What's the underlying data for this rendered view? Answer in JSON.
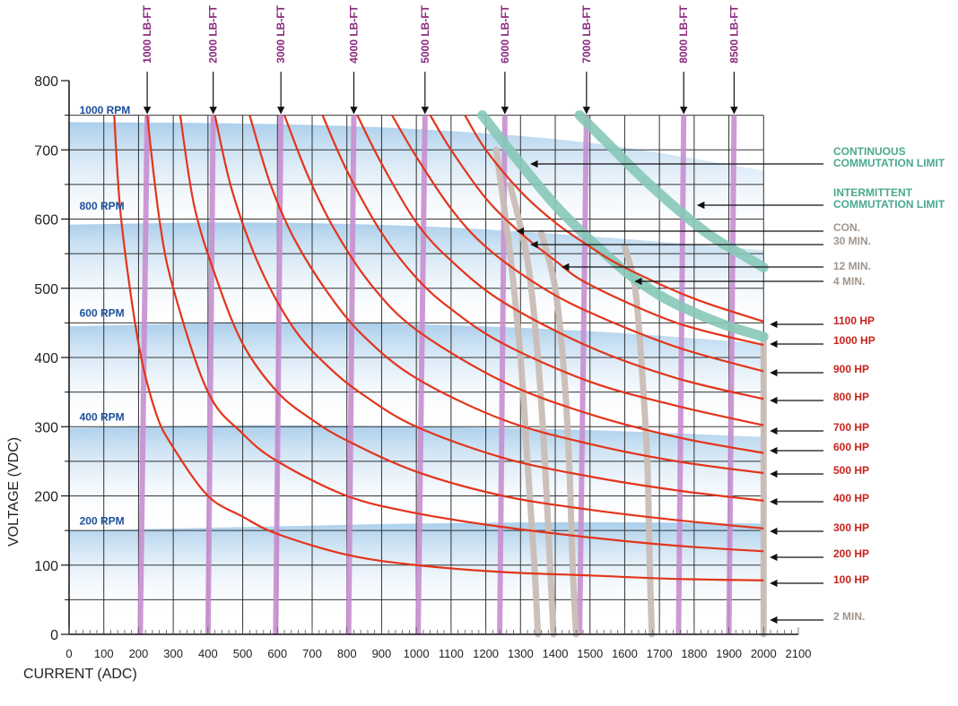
{
  "chart_data": {
    "type": "line",
    "xlabel": "CURRENT (ADC)",
    "ylabel": "VOLTAGE (VDC)",
    "xlim": [
      0,
      2100
    ],
    "ylim": [
      0,
      800
    ],
    "x_ticks": [
      "0",
      "100",
      "200",
      "300",
      "400",
      "500",
      "600",
      "700",
      "800",
      "900",
      "1000",
      "1100",
      "1200",
      "1300",
      "1400",
      "1500",
      "1600",
      "1700",
      "1800",
      "1900",
      "2000",
      "2100"
    ],
    "y_ticks": [
      "0",
      "100",
      "200",
      "300",
      "400",
      "500",
      "600",
      "700",
      "800"
    ],
    "grid": true,
    "colors": {
      "hp": "#e3341b",
      "torque": "#c88fd0",
      "rpm_band": "#a9cdea",
      "duty": "#c9bdb6",
      "commutation": "#86c8b8",
      "hp_label": "#c8231a",
      "duty_label": "#a0968e",
      "commutation_label": "#4aa88f",
      "torque_label": "#8a2a7e",
      "rpm_label": "#1b4f9c"
    },
    "hp_curves": [
      {
        "name": "100 HP",
        "x": [
          130,
          150,
          200,
          250,
          300,
          400,
          500,
          600,
          800,
          1000,
          1250,
          1500,
          1750,
          2000
        ],
        "y": [
          750,
          600,
          420,
          320,
          270,
          200,
          170,
          145,
          115,
          100,
          90,
          85,
          80,
          78
        ]
      },
      {
        "name": "200 HP",
        "x": [
          225,
          260,
          300,
          400,
          500,
          600,
          800,
          1000,
          1250,
          1500,
          1750,
          2000
        ],
        "y": [
          750,
          600,
          500,
          350,
          290,
          250,
          200,
          175,
          155,
          140,
          128,
          120
        ]
      },
      {
        "name": "300 HP",
        "x": [
          320,
          360,
          420,
          500,
          600,
          700,
          800,
          1000,
          1250,
          1500,
          1750,
          2000
        ],
        "y": [
          750,
          620,
          520,
          420,
          350,
          310,
          280,
          235,
          200,
          180,
          165,
          153
        ]
      },
      {
        "name": "400 HP",
        "x": [
          420,
          470,
          550,
          650,
          750,
          850,
          1000,
          1250,
          1500,
          1750,
          2000
        ],
        "y": [
          750,
          640,
          530,
          440,
          385,
          345,
          300,
          255,
          228,
          208,
          193
        ]
      },
      {
        "name": "500 HP",
        "x": [
          520,
          580,
          650,
          750,
          850,
          1000,
          1250,
          1500,
          1750,
          2000
        ],
        "y": [
          750,
          650,
          570,
          490,
          430,
          370,
          310,
          275,
          250,
          233
        ]
      },
      {
        "name": "600 HP",
        "x": [
          620,
          690,
          770,
          870,
          1000,
          1250,
          1500,
          1750,
          2000
        ],
        "y": [
          750,
          660,
          580,
          505,
          440,
          365,
          318,
          285,
          262
        ]
      },
      {
        "name": "700 HP",
        "x": [
          730,
          800,
          900,
          1000,
          1100,
          1250,
          1500,
          1750,
          2000
        ],
        "y": [
          750,
          670,
          580,
          515,
          470,
          420,
          365,
          330,
          302
        ]
      },
      {
        "name": "800 HP",
        "x": [
          830,
          900,
          1000,
          1100,
          1250,
          1500,
          1750,
          2000
        ],
        "y": [
          750,
          680,
          595,
          540,
          480,
          415,
          370,
          340
        ]
      },
      {
        "name": "900 HP",
        "x": [
          930,
          1000,
          1100,
          1200,
          1350,
          1500,
          1750,
          2000
        ],
        "y": [
          750,
          690,
          615,
          560,
          505,
          465,
          415,
          380
        ]
      },
      {
        "name": "1000 HP",
        "x": [
          1040,
          1100,
          1200,
          1300,
          1400,
          1500,
          1750,
          2000
        ],
        "y": [
          750,
          700,
          630,
          580,
          540,
          505,
          450,
          418
        ]
      },
      {
        "name": "1100 HP",
        "x": [
          1140,
          1200,
          1300,
          1400,
          1500,
          1600,
          1800,
          2000
        ],
        "y": [
          750,
          700,
          640,
          595,
          560,
          530,
          485,
          452
        ]
      }
    ],
    "torque_lines": [
      {
        "name": "1000 LB-FT",
        "x_bottom": 205,
        "x_top": 225
      },
      {
        "name": "2000 LB-FT",
        "x_bottom": 400,
        "x_top": 415
      },
      {
        "name": "3000 LB-FT",
        "x_bottom": 595,
        "x_top": 610
      },
      {
        "name": "4000 LB-FT",
        "x_bottom": 805,
        "x_top": 820
      },
      {
        "name": "5000 LB-FT",
        "x_bottom": 1005,
        "x_top": 1025
      },
      {
        "name": "6000 LB-FT",
        "x_bottom": 1240,
        "x_top": 1255
      },
      {
        "name": "7000 LB-FT",
        "x_bottom": 1470,
        "x_top": 1490
      },
      {
        "name": "8000 LB-FT",
        "x_bottom": 1755,
        "x_top": 1770
      },
      {
        "name": "8500 LB-FT",
        "x_bottom": 1900,
        "x_top": 1915
      }
    ],
    "rpm_bands": [
      {
        "name": "1000 RPM",
        "x": [
          0,
          500,
          1000,
          1500,
          2000
        ],
        "y_top": [
          740,
          738,
          730,
          710,
          670
        ],
        "y_bottom": [
          600,
          598,
          592,
          580,
          565
        ]
      },
      {
        "name": "800 RPM",
        "x": [
          0,
          500,
          1000,
          1500,
          2000
        ],
        "y_top": [
          592,
          595,
          590,
          575,
          555
        ],
        "y_bottom": [
          460,
          458,
          455,
          448,
          440
        ]
      },
      {
        "name": "600 RPM",
        "x": [
          0,
          500,
          1000,
          1500,
          2000
        ],
        "y_top": [
          445,
          450,
          448,
          438,
          420
        ],
        "y_bottom": [
          315,
          313,
          310,
          305,
          300
        ]
      },
      {
        "name": "400 RPM",
        "x": [
          0,
          500,
          1000,
          1500,
          2000
        ],
        "y_top": [
          298,
          302,
          300,
          295,
          285
        ],
        "y_bottom": [
          165,
          163,
          160,
          158,
          155
        ]
      },
      {
        "name": "200 RPM",
        "x": [
          0,
          500,
          1000,
          1500,
          2000
        ],
        "y_top": [
          150,
          155,
          160,
          162,
          160
        ],
        "y_bottom": [
          20,
          20,
          20,
          20,
          20
        ]
      }
    ],
    "rpm_labels": [
      {
        "name": "1000 RPM",
        "y": 748
      },
      {
        "name": "800 RPM",
        "y": 610
      },
      {
        "name": "600 RPM",
        "y": 455
      },
      {
        "name": "400 RPM",
        "y": 305
      },
      {
        "name": "200 RPM",
        "y": 155
      }
    ],
    "duty_curves": [
      {
        "name": "CON.",
        "x": [
          1230,
          1270,
          1300,
          1320,
          1340,
          1350
        ],
        "y": [
          700,
          550,
          400,
          250,
          100,
          0
        ]
      },
      {
        "name": "30 MIN.",
        "x": [
          1270,
          1320,
          1350,
          1370,
          1385,
          1395
        ],
        "y": [
          650,
          540,
          400,
          250,
          100,
          0
        ]
      },
      {
        "name": "12 MIN.",
        "x": [
          1360,
          1400,
          1425,
          1440,
          1450,
          1460
        ],
        "y": [
          580,
          500,
          380,
          250,
          100,
          0
        ]
      },
      {
        "name": "4 MIN.",
        "x": [
          1600,
          1630,
          1650,
          1665,
          1672,
          1678
        ],
        "y": [
          560,
          500,
          380,
          250,
          100,
          0
        ]
      },
      {
        "name": "2 MIN.",
        "x": [
          2000,
          2000,
          2000
        ],
        "y": [
          430,
          200,
          0
        ]
      }
    ],
    "commutation_limits": [
      {
        "name": "CONTINUOUS COMMUTATION LIMIT",
        "x": [
          1190,
          1300,
          1400,
          1500,
          1600,
          1700,
          1800,
          1900,
          2000
        ],
        "y": [
          750,
          680,
          620,
          570,
          525,
          490,
          465,
          445,
          430
        ]
      },
      {
        "name": "INTERMITTENT COMMUTATION LIMIT",
        "x": [
          1470,
          1550,
          1650,
          1750,
          1850,
          1950,
          2000
        ],
        "y": [
          750,
          710,
          660,
          615,
          575,
          545,
          530
        ]
      }
    ],
    "right_labels": [
      {
        "text": "CONTINUOUS",
        "kind": "commutation"
      },
      {
        "text": "COMMUTATION LIMIT",
        "kind": "commutation"
      },
      {
        "text": "INTERMITTENT",
        "kind": "commutation"
      },
      {
        "text": "COMMUTATION LIMIT",
        "kind": "commutation"
      },
      {
        "text": "CON.",
        "kind": "duty"
      },
      {
        "text": "30 MIN.",
        "kind": "duty"
      },
      {
        "text": "12 MIN.",
        "kind": "duty"
      },
      {
        "text": "4 MIN.",
        "kind": "duty"
      },
      {
        "text": "1100 HP",
        "kind": "hp"
      },
      {
        "text": "1000 HP",
        "kind": "hp"
      },
      {
        "text": "900 HP",
        "kind": "hp"
      },
      {
        "text": "800 HP",
        "kind": "hp"
      },
      {
        "text": "700 HP",
        "kind": "hp"
      },
      {
        "text": "600 HP",
        "kind": "hp"
      },
      {
        "text": "500 HP",
        "kind": "hp"
      },
      {
        "text": "400 HP",
        "kind": "hp"
      },
      {
        "text": "300 HP",
        "kind": "hp"
      },
      {
        "text": "200 HP",
        "kind": "hp"
      },
      {
        "text": "100 HP",
        "kind": "hp"
      },
      {
        "text": "2 MIN.",
        "kind": "duty"
      }
    ],
    "right_label_points": [
      {
        "label": "CONTINUOUS COMMUTATION LIMIT",
        "x": 1320,
        "y": 680
      },
      {
        "label": "INTERMITTENT COMMUTATION LIMIT",
        "x": 1800,
        "y": 617
      },
      {
        "label": "CON.",
        "x": 1280,
        "y": 590
      },
      {
        "label": "30 MIN.",
        "x": 1320,
        "y": 568
      },
      {
        "label": "12 MIN.",
        "x": 1410,
        "y": 545
      },
      {
        "label": "4 MIN.",
        "x": 1620,
        "y": 512
      },
      {
        "label": "1100 HP",
        "x": 2010,
        "y": 452
      },
      {
        "label": "1000 HP",
        "x": 2010,
        "y": 418
      },
      {
        "label": "900 HP",
        "x": 2010,
        "y": 380
      },
      {
        "label": "800 HP",
        "x": 2010,
        "y": 340
      },
      {
        "label": "700 HP",
        "x": 2010,
        "y": 302
      },
      {
        "label": "600 HP",
        "x": 2010,
        "y": 265
      },
      {
        "label": "500 HP",
        "x": 2010,
        "y": 233
      },
      {
        "label": "400 HP",
        "x": 2010,
        "y": 193
      },
      {
        "label": "300 HP",
        "x": 2010,
        "y": 153
      },
      {
        "label": "200 HP",
        "x": 2010,
        "y": 120
      },
      {
        "label": "100 HP",
        "x": 2010,
        "y": 78
      },
      {
        "label": "2 MIN.",
        "x": 2010,
        "y": 15
      }
    ]
  }
}
